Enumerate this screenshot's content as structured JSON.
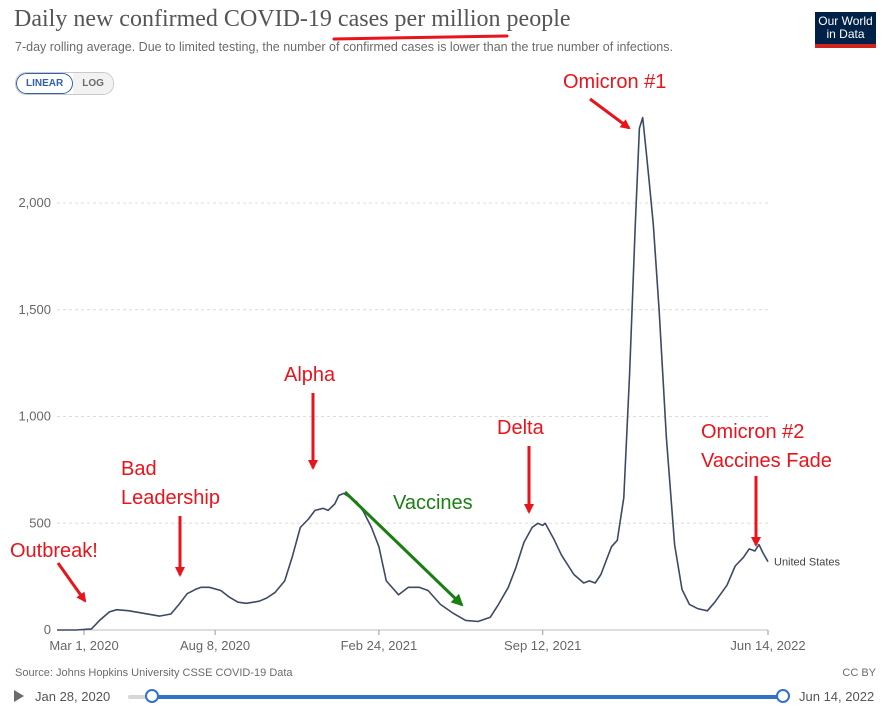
{
  "header": {
    "title": "Daily new confirmed COVID-19 cases per million people",
    "subtitle": "7-day rolling average. Due to limited testing, the number of confirmed cases is lower than the true number of infections.",
    "logo_line1": "Our World",
    "logo_line2": "in Data"
  },
  "scale_toggle": {
    "linear_label": "LINEAR",
    "log_label": "LOG",
    "selected": "LINEAR"
  },
  "footer": {
    "source": "Source: Johns Hopkins University CSSE COVID-19 Data",
    "license": "CC BY"
  },
  "timeline": {
    "start_label": "Jan 28, 2020",
    "end_label": "Jun 14, 2022"
  },
  "colors": {
    "series": "#3c4a63",
    "annotation_red": "#e8131b",
    "annotation_green": "#1a7f12",
    "accent_blue": "#3471c9",
    "underline_red": "#e8131b"
  },
  "chart_data": {
    "type": "line",
    "title": "Daily new confirmed COVID-19 cases per million people",
    "subtitle": "7-day rolling average. Due to limited testing, the number of confirmed cases is lower than the true number of infections.",
    "xlabel": "",
    "ylabel": "",
    "x_range": [
      "2020-01-28",
      "2022-06-14"
    ],
    "ylim": [
      0,
      2400
    ],
    "y_ticks": [
      0,
      500,
      1000,
      1500,
      2000
    ],
    "y_tick_labels": [
      "0",
      "500",
      "1,000",
      "1,500",
      "2,000"
    ],
    "x_ticks": [
      "2020-03-01",
      "2020-08-08",
      "2021-02-24",
      "2021-09-12",
      "2022-06-14"
    ],
    "x_tick_labels": [
      "Mar 1, 2020",
      "Aug 8, 2020",
      "Feb 24, 2021",
      "Sep 12, 2021",
      "Jun 14, 2022"
    ],
    "grid": "horizontal dashed",
    "series": [
      {
        "name": "United States",
        "x": [
          "2020-01-28",
          "2020-02-20",
          "2020-03-10",
          "2020-03-20",
          "2020-04-01",
          "2020-04-10",
          "2020-04-25",
          "2020-05-10",
          "2020-06-01",
          "2020-06-15",
          "2020-06-25",
          "2020-07-05",
          "2020-07-15",
          "2020-07-22",
          "2020-08-01",
          "2020-08-15",
          "2020-08-25",
          "2020-09-05",
          "2020-09-15",
          "2020-10-01",
          "2020-10-10",
          "2020-10-20",
          "2020-11-01",
          "2020-11-10",
          "2020-11-20",
          "2020-11-30",
          "2020-12-08",
          "2020-12-18",
          "2020-12-24",
          "2021-01-01",
          "2021-01-06",
          "2021-01-12",
          "2021-01-20",
          "2021-01-28",
          "2021-02-05",
          "2021-02-15",
          "2021-02-24",
          "2021-03-05",
          "2021-03-20",
          "2021-04-01",
          "2021-04-14",
          "2021-04-25",
          "2021-05-10",
          "2021-05-25",
          "2021-06-10",
          "2021-06-25",
          "2021-07-10",
          "2021-07-20",
          "2021-08-01",
          "2021-08-10",
          "2021-08-20",
          "2021-08-30",
          "2021-09-06",
          "2021-09-12",
          "2021-09-15",
          "2021-09-25",
          "2021-10-05",
          "2021-10-20",
          "2021-11-01",
          "2021-11-08",
          "2021-11-15",
          "2021-11-22",
          "2021-11-29",
          "2021-12-05",
          "2021-12-12",
          "2021-12-20",
          "2021-12-27",
          "2022-01-03",
          "2022-01-08",
          "2022-01-12",
          "2022-01-16",
          "2022-01-20",
          "2022-01-25",
          "2022-02-01",
          "2022-02-10",
          "2022-02-20",
          "2022-03-01",
          "2022-03-10",
          "2022-03-20",
          "2022-04-01",
          "2022-04-10",
          "2022-04-25",
          "2022-05-05",
          "2022-05-15",
          "2022-05-22",
          "2022-05-29",
          "2022-06-03",
          "2022-06-08",
          "2022-06-14"
        ],
        "values": [
          0,
          0,
          5,
          45,
          85,
          95,
          90,
          80,
          65,
          75,
          120,
          170,
          190,
          200,
          200,
          185,
          155,
          130,
          125,
          135,
          150,
          175,
          230,
          340,
          480,
          520,
          560,
          570,
          560,
          590,
          630,
          640,
          620,
          600,
          555,
          480,
          390,
          230,
          165,
          200,
          200,
          185,
          120,
          80,
          45,
          40,
          60,
          120,
          200,
          290,
          410,
          480,
          500,
          490,
          500,
          430,
          350,
          260,
          220,
          230,
          220,
          260,
          330,
          390,
          420,
          620,
          1200,
          1900,
          2350,
          2400,
          2250,
          2100,
          1900,
          1500,
          900,
          400,
          190,
          120,
          100,
          90,
          130,
          210,
          300,
          340,
          380,
          370,
          400,
          360,
          320
        ]
      }
    ],
    "annotations": [
      "cases per million",
      "Outbreak!",
      "Bad",
      "Leadership",
      "Alpha",
      "Vaccines",
      "Delta",
      "Omicron #1",
      "Omicron #2",
      "Vaccines Fade"
    ]
  }
}
